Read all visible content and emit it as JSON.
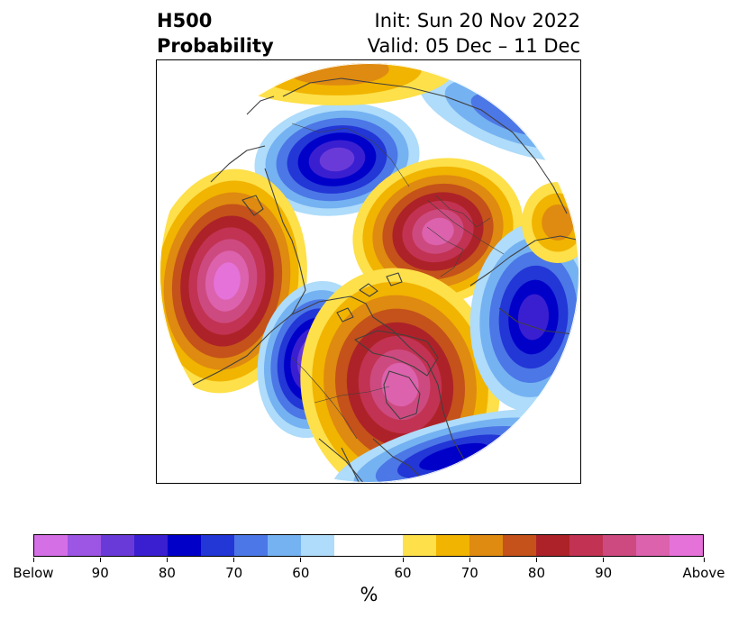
{
  "header": {
    "title_line1": "H500",
    "title_line2": "Probability",
    "init": "Init: Sun 20 Nov 2022",
    "valid": "Valid: 05 Dec – 11 Dec"
  },
  "map": {
    "projection": "north polar stereographic",
    "palette": {
      "below": [
        "#d46fe6",
        "#9d55e3",
        "#6a3ad8",
        "#3a1fd0",
        "#0000c9",
        "#2336d6",
        "#4c77e6",
        "#75b2f2",
        "#aedcfa"
      ],
      "neutral": "#ffffff",
      "above": [
        "#fde04a",
        "#f1b400",
        "#df8a10",
        "#c4521a",
        "#ad2228",
        "#c23252",
        "#cd4a80",
        "#dc62ad",
        "#e472d8"
      ],
      "coast": "#404040"
    }
  },
  "colorbar": {
    "colors": [
      "#d46fe6",
      "#9d55e3",
      "#6a3ad8",
      "#3a1fd0",
      "#0000c9",
      "#2336d6",
      "#4c77e6",
      "#75b2f2",
      "#aedcfa",
      "#ffffff",
      "#fde04a",
      "#f1b400",
      "#df8a10",
      "#c4521a",
      "#ad2228",
      "#c23252",
      "#cd4a80",
      "#dc62ad",
      "#e472d8"
    ],
    "tick_labels": [
      "Below",
      "90",
      "80",
      "70",
      "60",
      "60",
      "70",
      "80",
      "90",
      "Above"
    ],
    "unit": "%"
  }
}
